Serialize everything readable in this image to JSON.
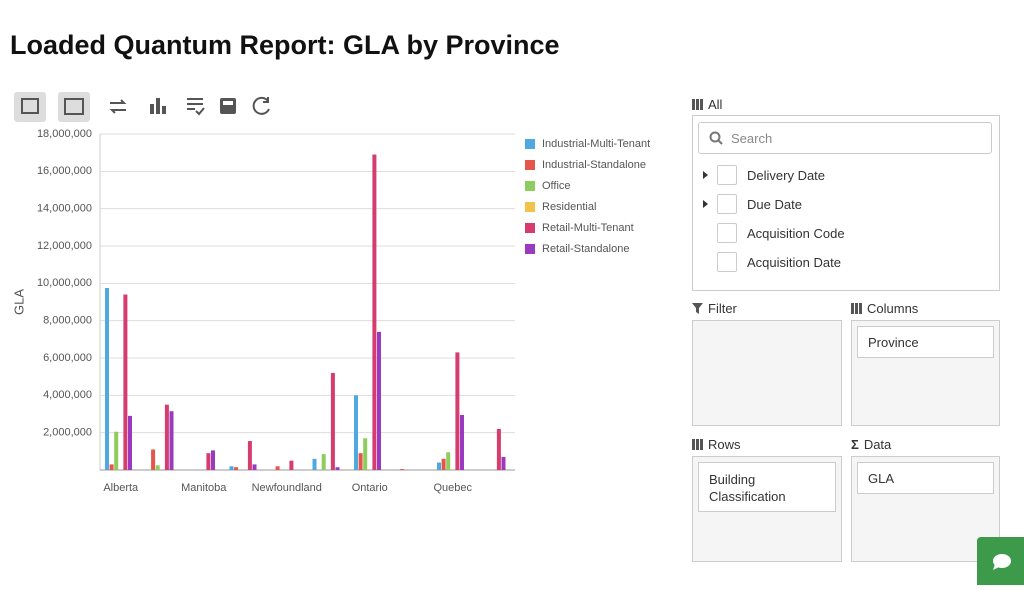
{
  "header": {
    "title": "Loaded Quantum Report: GLA by Province"
  },
  "chart_data": {
    "type": "bar",
    "ylabel": "GLA",
    "categories": [
      "Alberta",
      null,
      "Manitoba",
      null,
      "Newfoundland",
      null,
      "Ontario",
      null,
      "Quebec",
      null
    ],
    "series": [
      {
        "name": "Industrial-Multi-Tenant",
        "color": "#4fa8e0",
        "values": [
          9750000,
          0,
          0,
          200000,
          0,
          600000,
          4000000,
          0,
          400000,
          0
        ]
      },
      {
        "name": "Industrial-Standalone",
        "color": "#e4564a",
        "values": [
          300000,
          1100000,
          0,
          150000,
          200000,
          0,
          900000,
          50000,
          600000,
          0
        ]
      },
      {
        "name": "Office",
        "color": "#8fcc5e",
        "values": [
          2050000,
          250000,
          0,
          0,
          0,
          850000,
          1700000,
          0,
          950000,
          0
        ]
      },
      {
        "name": "Residential",
        "color": "#f2c24a",
        "values": [
          0,
          0,
          0,
          0,
          0,
          0,
          0,
          0,
          0,
          0
        ]
      },
      {
        "name": "Retail-Multi-Tenant",
        "color": "#d63c6e",
        "values": [
          9400000,
          3500000,
          900000,
          1550000,
          500000,
          5200000,
          16900000,
          0,
          6300000,
          2200000
        ]
      },
      {
        "name": "Retail-Standalone",
        "color": "#9a3bbf",
        "values": [
          2900000,
          3150000,
          1050000,
          300000,
          0,
          150000,
          7400000,
          0,
          2950000,
          700000
        ]
      }
    ],
    "ylim": [
      0,
      18000000
    ],
    "yticks": [
      {
        "value": 2000000,
        "label": "2,000,000"
      },
      {
        "value": 4000000,
        "label": "4,000,000"
      },
      {
        "value": 6000000,
        "label": "6,000,000"
      },
      {
        "value": 8000000,
        "label": "8,000,000"
      },
      {
        "value": 10000000,
        "label": "10,000,000"
      },
      {
        "value": 12000000,
        "label": "12,000,000"
      },
      {
        "value": 14000000,
        "label": "14,000,000"
      },
      {
        "value": 16000000,
        "label": "16,000,000"
      },
      {
        "value": 18000000,
        "label": "18,000,000"
      }
    ],
    "grid": true,
    "legend": "right"
  },
  "fields": {
    "title": "All",
    "search": "Search",
    "items": [
      "Delivery Date",
      "Due Date",
      "Acquisition Code",
      "Acquisition Date"
    ]
  },
  "filter": {
    "title": "Filter"
  },
  "columns": {
    "title": "Columns",
    "items": [
      "Province"
    ]
  },
  "rows": {
    "title": "Rows",
    "items": [
      "Building Classification"
    ]
  },
  "data": {
    "title": "Data",
    "items": [
      "GLA"
    ]
  }
}
